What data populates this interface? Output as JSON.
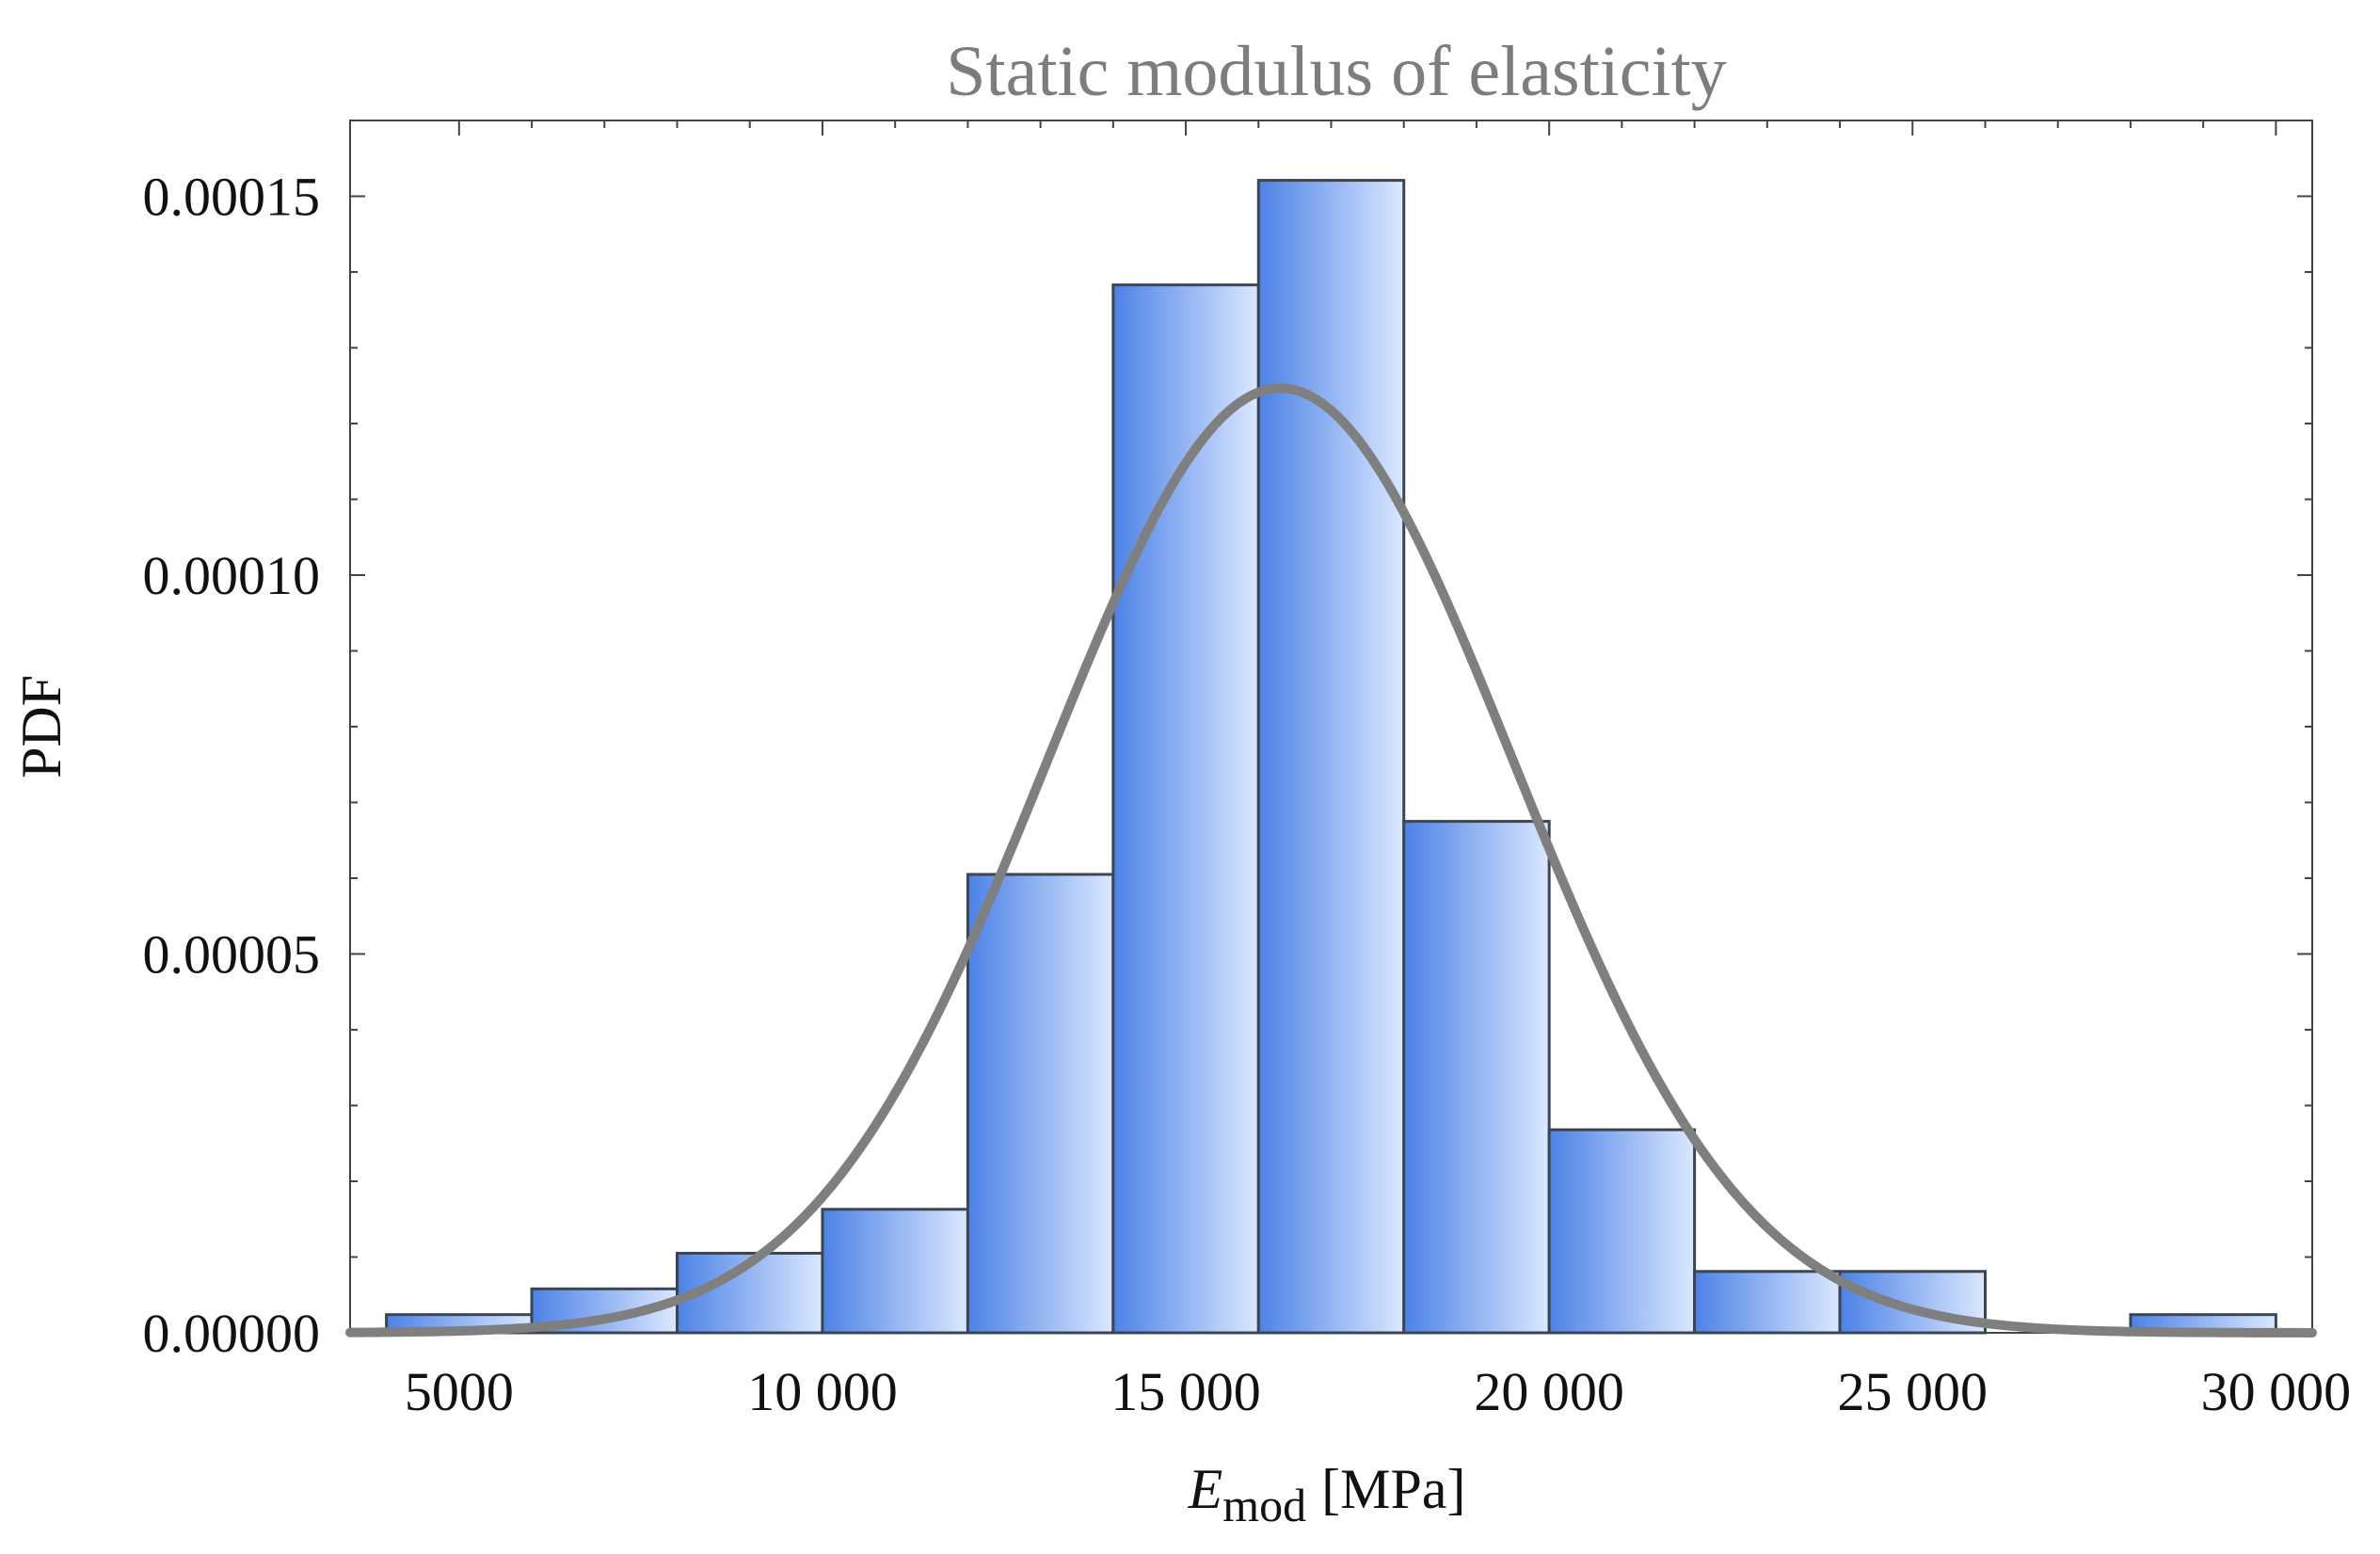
{
  "chart_data": {
    "type": "bar",
    "title": "Static modulus of elasticity",
    "xlabel": {
      "symbol": "E",
      "subscript": "mod",
      "units": "[MPa]"
    },
    "ylabel": "PDF",
    "xlim": [
      3500,
      30500
    ],
    "ylim": [
      0,
      0.00016
    ],
    "x_ticks": [
      {
        "value": 5000,
        "label": "5000"
      },
      {
        "value": 10000,
        "label": "10 000"
      },
      {
        "value": 15000,
        "label": "15 000"
      },
      {
        "value": 20000,
        "label": "20 000"
      },
      {
        "value": 25000,
        "label": "25 000"
      },
      {
        "value": 30000,
        "label": "30 000"
      }
    ],
    "y_ticks": [
      {
        "value": 0.0,
        "label": "0.00000"
      },
      {
        "value": 5e-05,
        "label": "0.00005"
      },
      {
        "value": 0.0001,
        "label": "0.00010"
      },
      {
        "value": 0.00015,
        "label": "0.00015"
      }
    ],
    "bins": [
      {
        "x0": 4000,
        "x1": 6000,
        "value": 2.4e-06
      },
      {
        "x0": 6000,
        "x1": 8000,
        "value": 5.8e-06
      },
      {
        "x0": 8000,
        "x1": 10000,
        "value": 1.05e-05
      },
      {
        "x0": 10000,
        "x1": 12000,
        "value": 1.63e-05
      },
      {
        "x0": 12000,
        "x1": 14000,
        "value": 6.05e-05
      },
      {
        "x0": 14000,
        "x1": 16000,
        "value": 0.0001383
      },
      {
        "x0": 16000,
        "x1": 18000,
        "value": 0.0001521
      },
      {
        "x0": 18000,
        "x1": 20000,
        "value": 6.75e-05
      },
      {
        "x0": 20000,
        "x1": 22000,
        "value": 2.68e-05
      },
      {
        "x0": 22000,
        "x1": 24000,
        "value": 8.1e-06
      },
      {
        "x0": 24000,
        "x1": 26000,
        "value": 8.1e-06
      },
      {
        "x0": 26000,
        "x1": 28000,
        "value": 0
      },
      {
        "x0": 28000,
        "x1": 30000,
        "value": 2.4e-06
      }
    ],
    "fit_curve": {
      "type": "normal_pdf",
      "mean": 16300,
      "sd": 3200
    },
    "colors": {
      "bar_dark": "#4c82e6",
      "bar_light": "#dbe8ff",
      "bar_stroke": "#3b4652",
      "curve": "#7f7f7f",
      "frame": "#444444",
      "title": "#7d7d7d"
    }
  }
}
